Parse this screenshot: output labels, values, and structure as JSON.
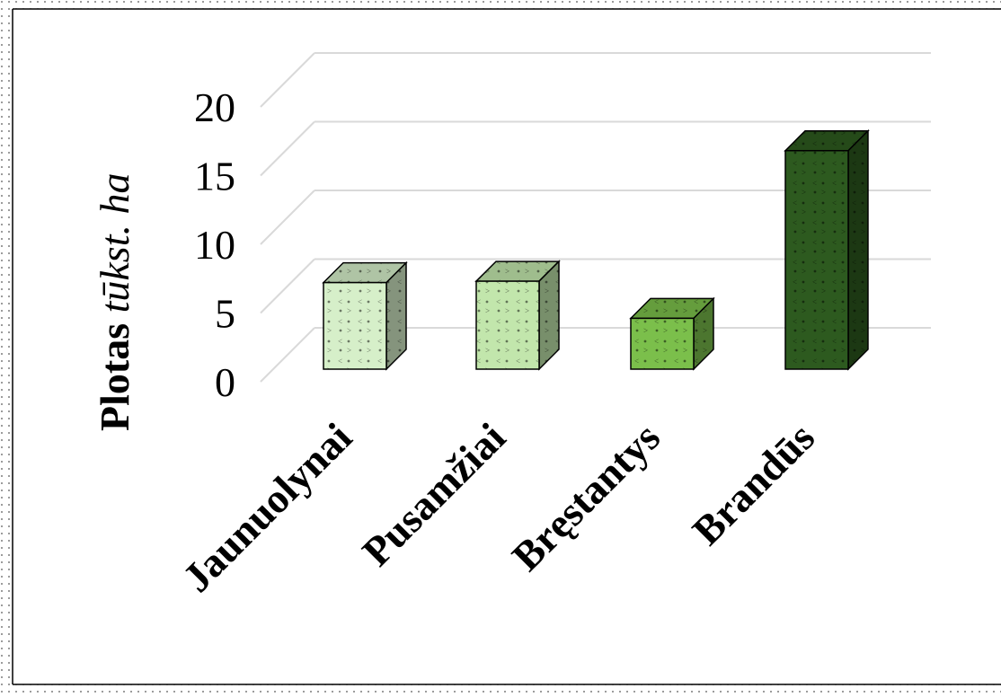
{
  "chart_data": {
    "type": "bar",
    "style": "3d-clustered-column",
    "categories": [
      "Jaunuolynai",
      "Pusamžiai",
      "Bręstantys",
      "Brandūs"
    ],
    "values": [
      6.3,
      6.4,
      3.7,
      15.9
    ],
    "bar_colors": [
      "#d6efc9",
      "#c2e6ac",
      "#7bbf4b",
      "#2d5a1f"
    ],
    "ylabel": {
      "bold_part": "Plotas",
      "italic_part": "tūkst. ha"
    },
    "yticks": [
      "0",
      "5",
      "10",
      "15",
      "20"
    ],
    "ylim": [
      0,
      20
    ],
    "grid": true,
    "legend": "none"
  }
}
